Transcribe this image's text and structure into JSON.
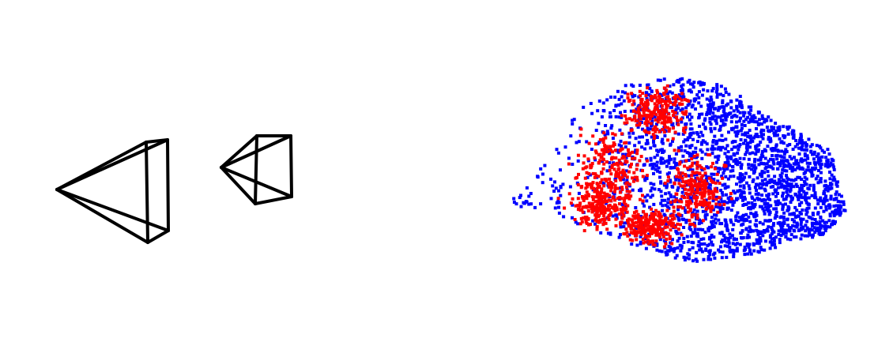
{
  "scene": {
    "background": "#ffffff",
    "camera_color": "#000000",
    "cameras": [
      {
        "id": "camera-1"
      },
      {
        "id": "camera-2"
      }
    ],
    "point_cloud": {
      "series": [
        {
          "color": "#ff0000",
          "approx_count": 1100
        },
        {
          "color": "#0000ff",
          "approx_count": 2200
        }
      ]
    }
  }
}
